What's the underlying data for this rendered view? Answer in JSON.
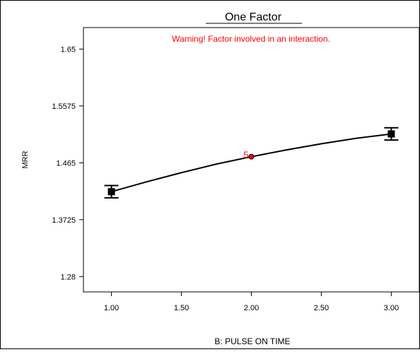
{
  "chart_data": {
    "type": "line",
    "title": "One Factor",
    "annotation": "Warning! Factor involved in an interaction.",
    "xlabel": "B: PULSE ON TIME",
    "ylabel": "MRR",
    "xlim": [
      0.8,
      3.2
    ],
    "ylim": [
      1.255,
      1.685
    ],
    "x_ticks": [
      "1.00",
      "1.50",
      "2.00",
      "2.50",
      "3.00"
    ],
    "y_ticks": [
      "1.28",
      "1.3725",
      "1.465",
      "1.5575",
      "1.65"
    ],
    "series": [
      {
        "x": [
          1.0,
          1.25,
          1.5,
          1.75,
          2.0,
          2.25,
          2.5,
          2.75,
          3.0
        ],
        "values": [
          1.418,
          1.434,
          1.449,
          1.463,
          1.475,
          1.486,
          1.496,
          1.505,
          1.512
        ]
      }
    ],
    "design_points": [
      {
        "x": 1.0,
        "y": 1.418,
        "low": 1.408,
        "high": 1.428
      },
      {
        "x": 3.0,
        "y": 1.512,
        "low": 1.502,
        "high": 1.522
      }
    ],
    "center_point": {
      "x": 2.0,
      "y": 1.475,
      "count_label": "5"
    },
    "colors": {
      "line": "#000000",
      "annotation": "#ff0000",
      "center_point": "#ff0000"
    }
  }
}
